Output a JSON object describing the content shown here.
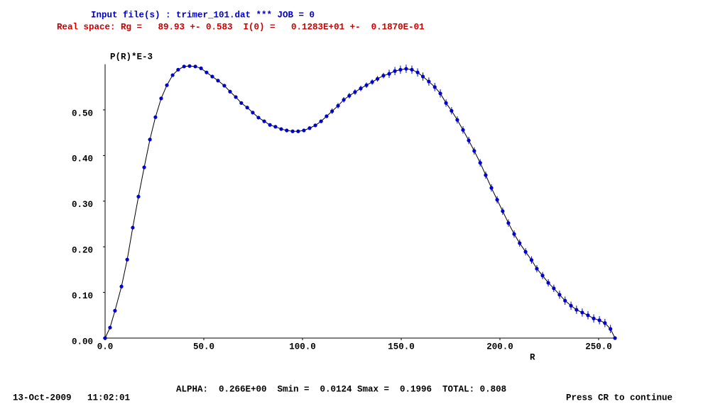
{
  "header": {
    "input_line": "Input file(s) : trimer_101.dat *** JOB = 0",
    "result_line": "Real space: Rg =   89.93 +- 0.583  I(0) =   0.1283E+01 +-  0.1870E-01"
  },
  "footer": {
    "params": "ALPHA:  0.266E+00  Smin =  0.0124 Smax =  0.1996  TOTAL: 0.808",
    "timestamp": "13-Oct-2009   11:02:01",
    "prompt": "Press CR to continue"
  },
  "chart_data": {
    "type": "line",
    "y_label": "P(R)*E-3",
    "x_label": "R",
    "xlim": [
      0,
      259
    ],
    "ylim": [
      0,
      0.6
    ],
    "xticks": [
      {
        "value": 0,
        "label": "0.0"
      },
      {
        "value": 50,
        "label": "50.0"
      },
      {
        "value": 100,
        "label": "100.0"
      },
      {
        "value": 150,
        "label": "150.0"
      },
      {
        "value": 200,
        "label": "200.0"
      },
      {
        "value": 250,
        "label": "250.0"
      }
    ],
    "yticks": [
      {
        "value": 0,
        "label": "0.00"
      },
      {
        "value": 0.1,
        "label": "0.10"
      },
      {
        "value": 0.2,
        "label": "0.20"
      },
      {
        "value": 0.3,
        "label": "0.30"
      },
      {
        "value": 0.4,
        "label": "0.40"
      },
      {
        "value": 0.5,
        "label": "0.50"
      }
    ],
    "x": [
      0,
      2.5,
      5,
      8.3,
      11.2,
      14,
      16.9,
      19.8,
      22.7,
      25.5,
      28.4,
      31.3,
      34.2,
      37,
      40,
      42.8,
      45.7,
      48.6,
      51.4,
      54.3,
      57.2,
      60.4,
      63.3,
      66.2,
      69,
      72,
      74.8,
      77.7,
      80.6,
      83.5,
      86.3,
      89.2,
      92,
      95,
      97.8,
      100.7,
      103.6,
      106.5,
      109.4,
      112.2,
      115,
      118,
      120.9,
      123.7,
      126.6,
      129.5,
      132.4,
      135.3,
      138,
      141,
      143.9,
      146.8,
      149.6,
      152.5,
      155.4,
      158.3,
      161,
      164,
      167,
      169.8,
      172.7,
      175.5,
      178.4,
      181.3,
      184.2,
      187,
      190,
      192.8,
      195.7,
      198.6,
      201.4,
      204.3,
      207.2,
      210,
      213,
      216,
      218.7,
      221.6,
      224.5,
      227.3,
      230.2,
      233,
      236,
      238.8,
      241.7,
      244.6,
      247.5,
      250.4,
      253.2,
      256,
      258.3
    ],
    "series": [
      {
        "color": "#0000cc",
        "line_color": "#000000",
        "values": [
          0,
          0.023,
          0.06,
          0.113,
          0.172,
          0.242,
          0.31,
          0.374,
          0.435,
          0.484,
          0.525,
          0.554,
          0.576,
          0.588,
          0.595,
          0.596,
          0.595,
          0.591,
          0.582,
          0.573,
          0.564,
          0.553,
          0.54,
          0.528,
          0.515,
          0.505,
          0.494,
          0.483,
          0.475,
          0.467,
          0.463,
          0.458,
          0.455,
          0.453,
          0.453,
          0.455,
          0.46,
          0.466,
          0.475,
          0.486,
          0.497,
          0.509,
          0.522,
          0.531,
          0.539,
          0.547,
          0.554,
          0.561,
          0.568,
          0.575,
          0.579,
          0.585,
          0.588,
          0.59,
          0.588,
          0.582,
          0.573,
          0.562,
          0.55,
          0.536,
          0.515,
          0.498,
          0.478,
          0.456,
          0.433,
          0.41,
          0.384,
          0.357,
          0.329,
          0.303,
          0.278,
          0.252,
          0.228,
          0.208,
          0.189,
          0.171,
          0.152,
          0.137,
          0.121,
          0.109,
          0.095,
          0.082,
          0.071,
          0.062,
          0.056,
          0.05,
          0.043,
          0.039,
          0.033,
          0.02,
          0
        ],
        "errors": [
          0.001,
          0.001,
          0.001,
          0.001,
          0.001,
          0.001,
          0.001,
          0.001,
          0.001,
          0.001,
          0.001,
          0.001,
          0.001,
          0.001,
          0.001,
          0.001,
          0.001,
          0.001,
          0.001,
          0.001,
          0.002,
          0.002,
          0.002,
          0.002,
          0.002,
          0.002,
          0.002,
          0.002,
          0.002,
          0.002,
          0.003,
          0.003,
          0.003,
          0.003,
          0.003,
          0.003,
          0.003,
          0.003,
          0.003,
          0.003,
          0.006,
          0.006,
          0.006,
          0.006,
          0.006,
          0.006,
          0.006,
          0.006,
          0.006,
          0.006,
          0.009,
          0.009,
          0.009,
          0.009,
          0.009,
          0.009,
          0.009,
          0.009,
          0.009,
          0.009,
          0.008,
          0.008,
          0.008,
          0.008,
          0.008,
          0.008,
          0.008,
          0.008,
          0.008,
          0.008,
          0.008,
          0.008,
          0.008,
          0.008,
          0.008,
          0.008,
          0.008,
          0.008,
          0.008,
          0.008,
          0.009,
          0.009,
          0.009,
          0.009,
          0.009,
          0.009,
          0.009,
          0.009,
          0.009,
          0.009,
          0
        ]
      }
    ]
  }
}
